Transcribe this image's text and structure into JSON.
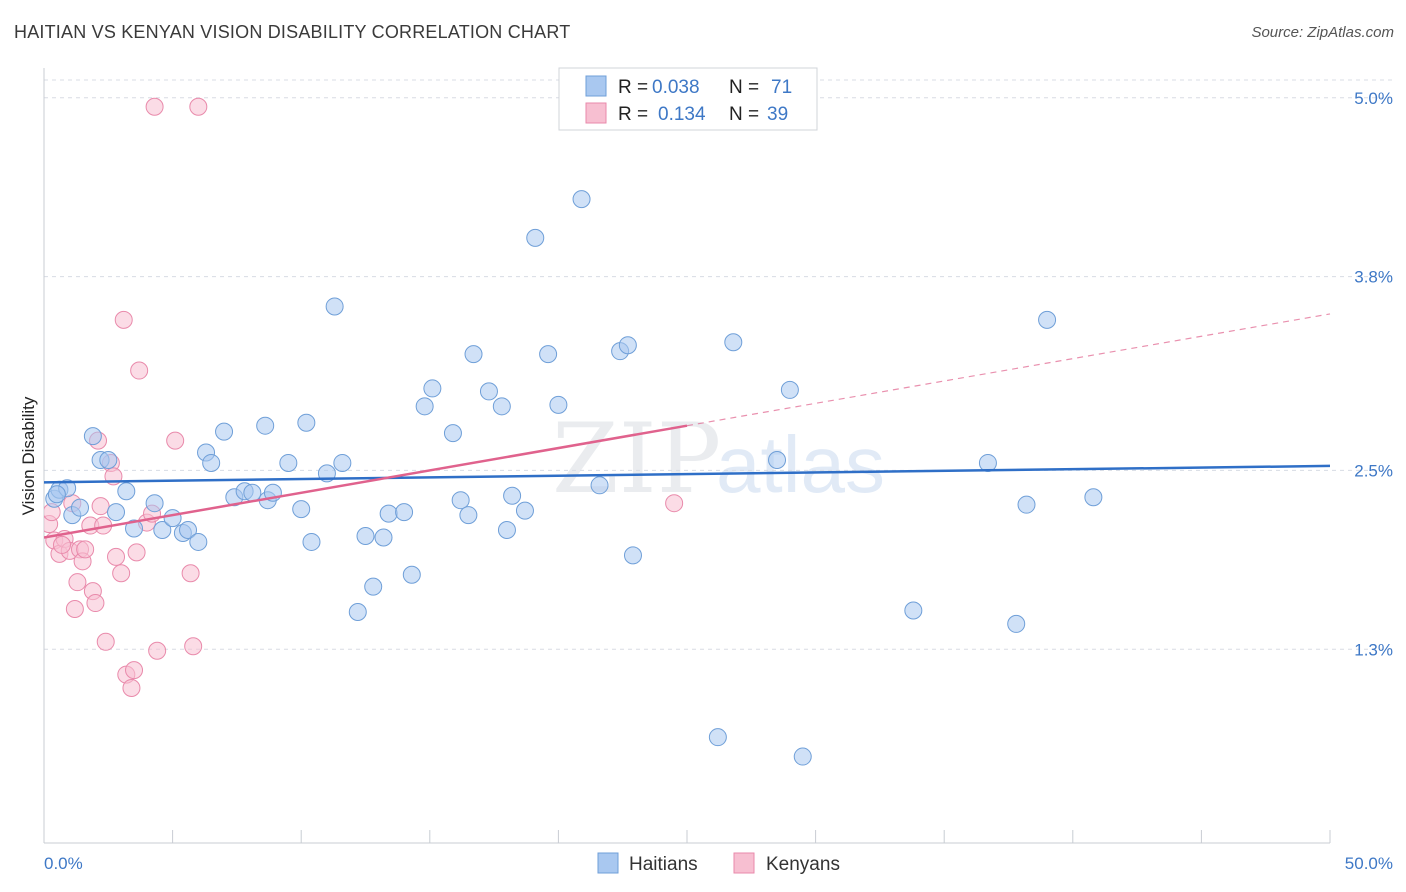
{
  "header": {
    "title": "HAITIAN VS KENYAN VISION DISABILITY CORRELATION CHART",
    "source": "Source: ZipAtlas.com"
  },
  "colors": {
    "haitian_fill": "#a9c8f0",
    "haitian_stroke": "#6f9fd8",
    "haitian_line": "#2f6fc7",
    "kenyan_fill": "#f7bfd1",
    "kenyan_stroke": "#e98aab",
    "kenyan_line": "#e0628d",
    "grid": "#d8dce4",
    "axis_text": "#3e78c6"
  },
  "legend": {
    "rows": [
      {
        "r_label": "R =",
        "r_value": "0.038",
        "n_label": "N =",
        "n_value": "71"
      },
      {
        "r_label": "R =",
        "r_value": "0.134",
        "n_label": "N =",
        "n_value": "39"
      }
    ]
  },
  "bottom_legend": [
    "Haitians",
    "Kenyans"
  ],
  "watermark": {
    "zip": "ZIP",
    "atlas": "atlas"
  },
  "chart_data": {
    "type": "scatter",
    "title": "HAITIAN VS KENYAN VISION DISABILITY CORRELATION CHART",
    "xlabel": "",
    "ylabel": "Vision Disability",
    "xlim": [
      0,
      50
    ],
    "ylim": [
      0,
      5.2
    ],
    "x_tick_labels": [
      "0.0%",
      "50.0%"
    ],
    "y_ticks": [
      1.3,
      2.5,
      3.8,
      5.0
    ],
    "y_tick_labels": [
      "1.3%",
      "2.5%",
      "3.8%",
      "5.0%"
    ],
    "grid": true,
    "legend_position": "top-center",
    "series": [
      {
        "name": "Haitians",
        "R": 0.038,
        "N": 71,
        "trend": {
          "x": [
            0,
            50
          ],
          "y": [
            2.42,
            2.53
          ],
          "dashed_from": null
        },
        "points": [
          [
            0.4,
            2.31
          ],
          [
            0.6,
            2.37
          ],
          [
            0.9,
            2.38
          ],
          [
            1.1,
            2.2
          ],
          [
            1.4,
            2.25
          ],
          [
            1.9,
            2.73
          ],
          [
            2.2,
            2.57
          ],
          [
            2.5,
            2.57
          ],
          [
            2.8,
            2.22
          ],
          [
            3.2,
            2.36
          ],
          [
            3.5,
            2.11
          ],
          [
            4.3,
            2.28
          ],
          [
            4.6,
            2.1
          ],
          [
            5.0,
            2.18
          ],
          [
            5.4,
            2.08
          ],
          [
            5.6,
            2.1
          ],
          [
            6.0,
            2.02
          ],
          [
            6.3,
            2.62
          ],
          [
            6.5,
            2.55
          ],
          [
            7.0,
            2.76
          ],
          [
            7.4,
            2.32
          ],
          [
            7.8,
            2.36
          ],
          [
            8.1,
            2.35
          ],
          [
            8.6,
            2.8
          ],
          [
            8.7,
            2.3
          ],
          [
            8.9,
            2.35
          ],
          [
            9.5,
            2.55
          ],
          [
            10.0,
            2.24
          ],
          [
            10.2,
            2.82
          ],
          [
            10.4,
            2.02
          ],
          [
            11.0,
            2.48
          ],
          [
            11.3,
            3.6
          ],
          [
            11.6,
            2.55
          ],
          [
            12.2,
            1.55
          ],
          [
            12.5,
            2.06
          ],
          [
            12.8,
            1.72
          ],
          [
            13.2,
            2.05
          ],
          [
            13.4,
            2.21
          ],
          [
            14.0,
            2.22
          ],
          [
            14.3,
            1.8
          ],
          [
            14.8,
            2.93
          ],
          [
            15.1,
            3.05
          ],
          [
            15.9,
            2.75
          ],
          [
            16.2,
            2.3
          ],
          [
            16.5,
            2.2
          ],
          [
            16.7,
            3.28
          ],
          [
            17.3,
            3.03
          ],
          [
            17.8,
            2.93
          ],
          [
            18.0,
            2.1
          ],
          [
            18.2,
            2.33
          ],
          [
            18.7,
            2.23
          ],
          [
            19.1,
            4.06
          ],
          [
            19.6,
            3.28
          ],
          [
            20.0,
            2.94
          ],
          [
            20.9,
            4.32
          ],
          [
            21.6,
            2.4
          ],
          [
            22.4,
            3.3
          ],
          [
            22.7,
            3.34
          ],
          [
            22.9,
            1.93
          ],
          [
            26.2,
            0.71
          ],
          [
            26.8,
            3.36
          ],
          [
            28.5,
            2.57
          ],
          [
            29.0,
            3.04
          ],
          [
            29.5,
            0.58
          ],
          [
            33.8,
            1.56
          ],
          [
            36.7,
            2.55
          ],
          [
            37.8,
            1.47
          ],
          [
            38.2,
            2.27
          ],
          [
            39.0,
            3.51
          ],
          [
            40.8,
            2.32
          ],
          [
            0.5,
            2.34
          ]
        ]
      },
      {
        "name": "Kenyans",
        "R": 0.134,
        "N": 39,
        "trend": {
          "x": [
            0,
            50
          ],
          "y": [
            2.05,
            3.55
          ],
          "dashed_from": 25.0
        },
        "points": [
          [
            0.2,
            2.14
          ],
          [
            0.4,
            2.03
          ],
          [
            0.6,
            1.94
          ],
          [
            0.8,
            2.04
          ],
          [
            1.0,
            1.96
          ],
          [
            1.2,
            1.57
          ],
          [
            1.3,
            1.75
          ],
          [
            1.4,
            1.97
          ],
          [
            1.5,
            1.89
          ],
          [
            1.6,
            1.97
          ],
          [
            1.8,
            2.13
          ],
          [
            1.9,
            1.69
          ],
          [
            2.0,
            1.61
          ],
          [
            2.1,
            2.7
          ],
          [
            2.2,
            2.26
          ],
          [
            2.3,
            2.13
          ],
          [
            2.4,
            1.35
          ],
          [
            2.6,
            2.55
          ],
          [
            2.7,
            2.46
          ],
          [
            2.8,
            1.92
          ],
          [
            3.0,
            1.81
          ],
          [
            3.1,
            3.51
          ],
          [
            3.2,
            1.13
          ],
          [
            3.4,
            1.04
          ],
          [
            3.5,
            1.16
          ],
          [
            3.6,
            1.95
          ],
          [
            3.7,
            3.17
          ],
          [
            4.0,
            2.15
          ],
          [
            4.2,
            2.21
          ],
          [
            4.3,
            4.94
          ],
          [
            4.4,
            1.29
          ],
          [
            5.1,
            2.7
          ],
          [
            5.7,
            1.81
          ],
          [
            5.8,
            1.32
          ],
          [
            6.0,
            4.94
          ],
          [
            24.5,
            2.28
          ],
          [
            0.3,
            2.22
          ],
          [
            1.1,
            2.28
          ],
          [
            0.7,
            2.0
          ]
        ]
      }
    ]
  }
}
